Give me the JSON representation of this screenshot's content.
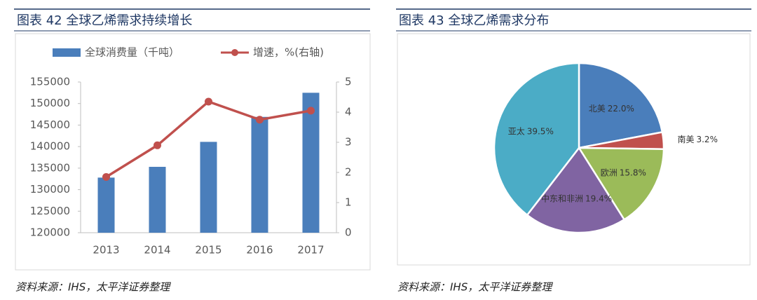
{
  "chart_data": [
    {
      "type": "bar",
      "title": "图表 42 全球乙烯需求持续增长",
      "source": "资料来源：IHS，太平洋证券整理",
      "categories": [
        "2013",
        "2014",
        "2015",
        "2016",
        "2017"
      ],
      "series": [
        {
          "name": "全球消费量（千吨）",
          "color": "#4a7ebb",
          "type": "bar",
          "values": [
            132800,
            135300,
            141100,
            146900,
            152500
          ]
        },
        {
          "name": "增速，%(右轴)",
          "color": "#c0504d",
          "type": "line",
          "axis": "y2",
          "values": [
            1.85,
            2.9,
            4.35,
            3.75,
            4.05
          ]
        }
      ],
      "ylim": [
        120000,
        155000
      ],
      "yticks": [
        120000,
        125000,
        130000,
        135000,
        140000,
        145000,
        150000,
        155000
      ],
      "y2lim": [
        0,
        5
      ],
      "y2ticks": [
        0,
        1,
        2,
        3,
        4,
        5
      ]
    },
    {
      "type": "pie",
      "title": "图表 43 全球乙烯需求分布",
      "source": "资料来源：IHS，太平洋证券整理",
      "categories": [
        "北美",
        "南美",
        "欧洲",
        "中东和非洲",
        "亚太"
      ],
      "values": [
        22.0,
        3.2,
        15.8,
        19.4,
        39.5
      ],
      "value_labels": [
        "22.0%",
        "3.2%",
        "15.8%",
        "19.4%",
        "39.5%"
      ],
      "colors": [
        "#4a7ebb",
        "#c0504d",
        "#9bbb59",
        "#8064a2",
        "#4bacc6"
      ]
    }
  ]
}
